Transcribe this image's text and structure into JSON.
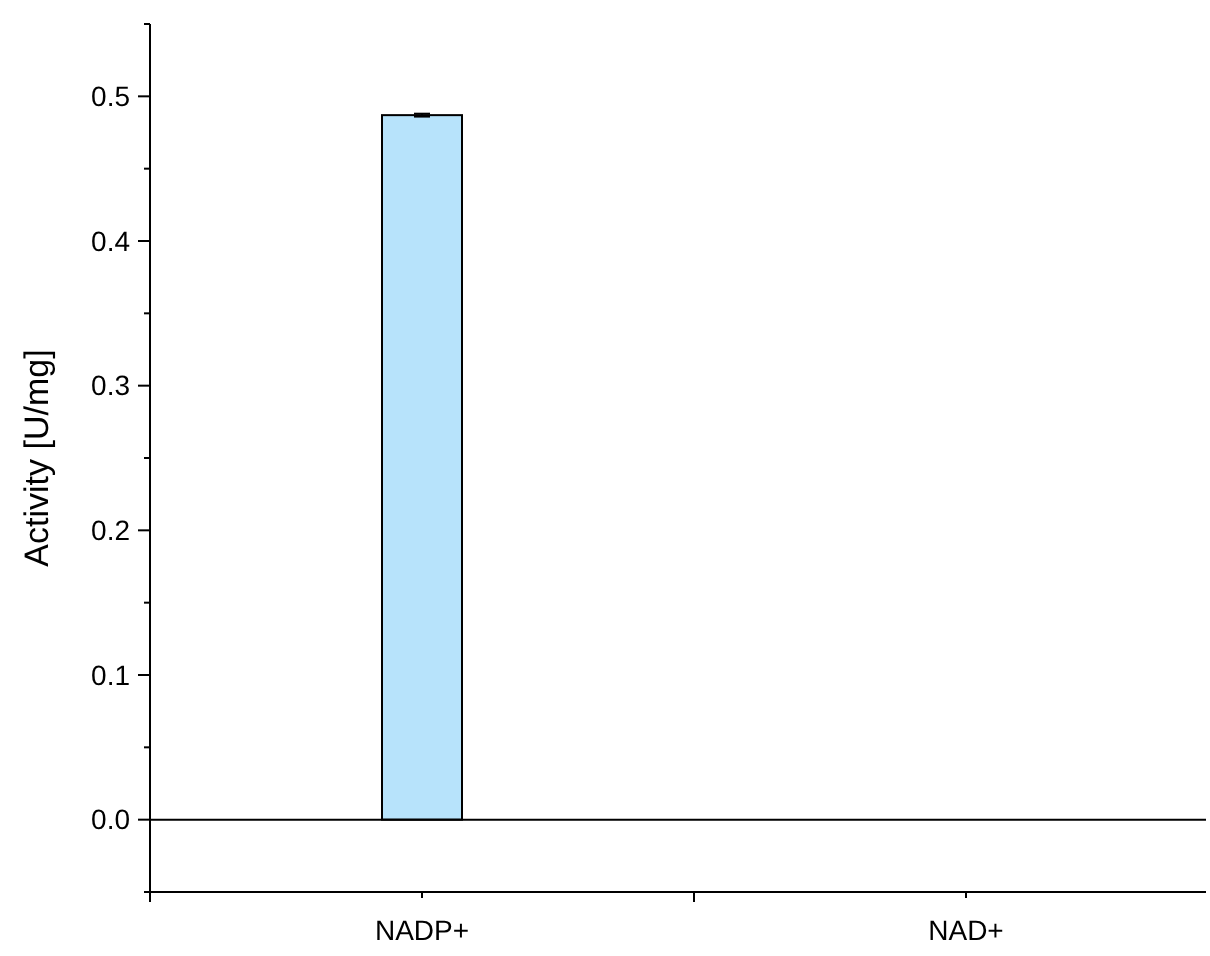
{
  "chart_data": {
    "type": "bar",
    "ylabel": "Activity [U/mg]",
    "categories": [
      "NADP+",
      "NAD+"
    ],
    "values": [
      0.487,
      0
    ],
    "errors": [
      0.001,
      null
    ],
    "color": "#b7e3fb",
    "ylim": [
      -0.05,
      0.55
    ],
    "yticks": [
      {
        "value": -0.05,
        "label": null
      },
      {
        "value": 0,
        "label": "0.0"
      },
      {
        "value": 0.05,
        "label": null
      },
      {
        "value": 0.1,
        "label": "0.1"
      },
      {
        "value": 0.15,
        "label": null
      },
      {
        "value": 0.2,
        "label": "0.2"
      },
      {
        "value": 0.25,
        "label": null
      },
      {
        "value": 0.3,
        "label": "0.3"
      },
      {
        "value": 0.35,
        "label": null
      },
      {
        "value": 0.4,
        "label": "0.4"
      },
      {
        "value": 0.45,
        "label": null
      },
      {
        "value": 0.5,
        "label": "0.5"
      },
      {
        "value": 0.55,
        "label": null
      }
    ],
    "ref_lines": [
      {
        "axis": "y",
        "value": 0,
        "color": "#000000"
      }
    ],
    "grid": false
  }
}
